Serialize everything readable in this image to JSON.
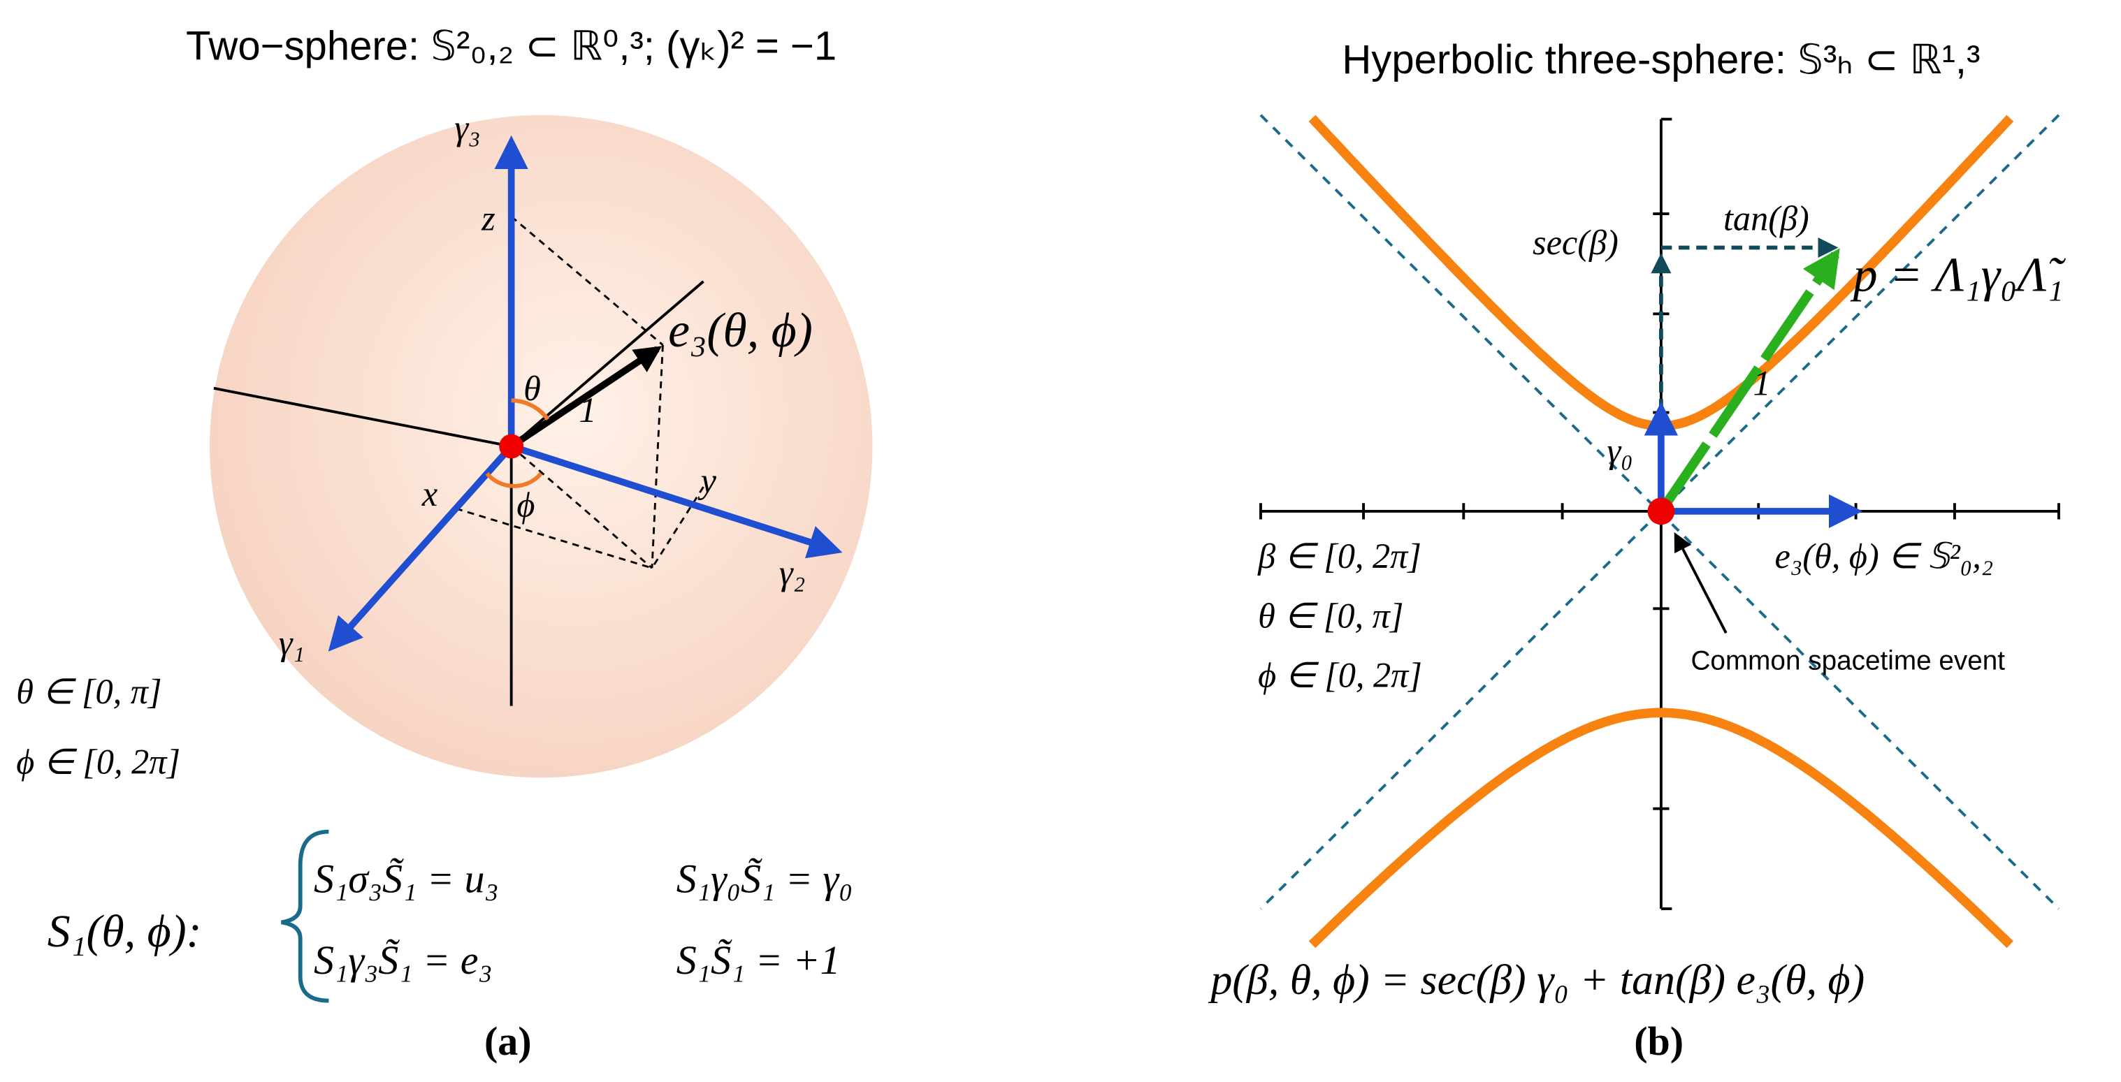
{
  "panel_a": {
    "title": "Two−sphere: 𝕊²₀,₂ ⊂ ℝ⁰,³; (γₖ)² = −1",
    "labels": {
      "gamma3": "γ₃",
      "z": "z",
      "theta": "θ",
      "e3": "e₃(θ, ϕ)",
      "one": "1",
      "x": "x",
      "phi": "ϕ",
      "y": "y",
      "gamma2": "γ₂",
      "gamma1": "γ₁"
    },
    "ranges": [
      "θ ∈ [0, π]",
      "ϕ ∈ [0, 2π]"
    ],
    "rotor": "S₁(θ, ϕ):",
    "equations": [
      "S₁σ₃S̃₁ = u₃",
      "S₁γ₀S̃₁ = γ₀",
      "S₁γ₃S̃₁ = e₃",
      "S₁S̃₁ = +1"
    ],
    "caption": "(a)"
  },
  "panel_b": {
    "title": "Hyperbolic three-sphere: 𝕊³ₕ ⊂ ℝ¹,³",
    "labels": {
      "sec": "sec(β)",
      "tan": "tan(β)",
      "p": "p = Λ₁γ₀Λ̃₁",
      "gamma0": "γ₀",
      "one": "1",
      "e3": "e₃(θ, ϕ) ∈ 𝕊²₀,₂",
      "event": "Common spacetime event"
    },
    "ranges": [
      "β ∈ [0, 2π]",
      "θ ∈ [0, π]",
      "ϕ ∈ [0, 2π]"
    ],
    "formula": "p(β, θ, ϕ) = sec(β) γ₀ + tan(β) e₃(θ, ϕ)",
    "caption": "(b)"
  }
}
